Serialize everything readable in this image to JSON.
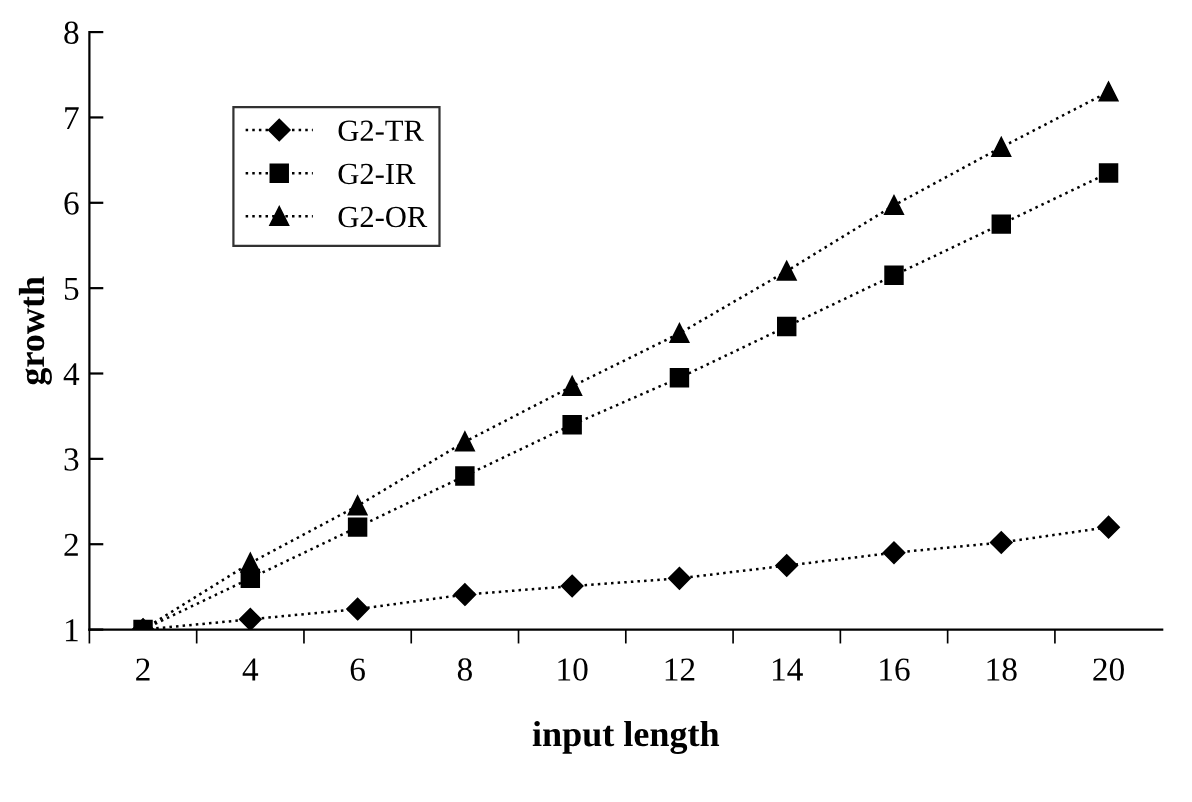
{
  "chart_data": {
    "type": "line",
    "xlabel": "input length",
    "ylabel": "growth",
    "categories": [
      "2",
      "4",
      "6",
      "8",
      "10",
      "12",
      "14",
      "16",
      "18",
      "20"
    ],
    "ylim": [
      1,
      8
    ],
    "yticks": [
      1,
      2,
      3,
      4,
      5,
      6,
      7,
      8
    ],
    "grid": false,
    "legend": "top left",
    "line_style": "dotted",
    "series": [
      {
        "name": "G2-TR",
        "color": "#000000",
        "marker": "diamond",
        "values": [
          1,
          1.12,
          1.24,
          1.41,
          1.51,
          1.6,
          1.75,
          1.9,
          2.02,
          2.2
        ]
      },
      {
        "name": "G2-IR",
        "color": "#000000",
        "marker": "square",
        "values": [
          1,
          1.6,
          2.2,
          2.8,
          3.4,
          3.95,
          4.55,
          5.15,
          5.75,
          6.35
        ]
      },
      {
        "name": "G2-OR",
        "color": "#000000",
        "marker": "triangle",
        "values": [
          1,
          1.78,
          2.45,
          3.2,
          3.85,
          4.47,
          5.2,
          5.97,
          6.65,
          7.3
        ]
      }
    ]
  }
}
